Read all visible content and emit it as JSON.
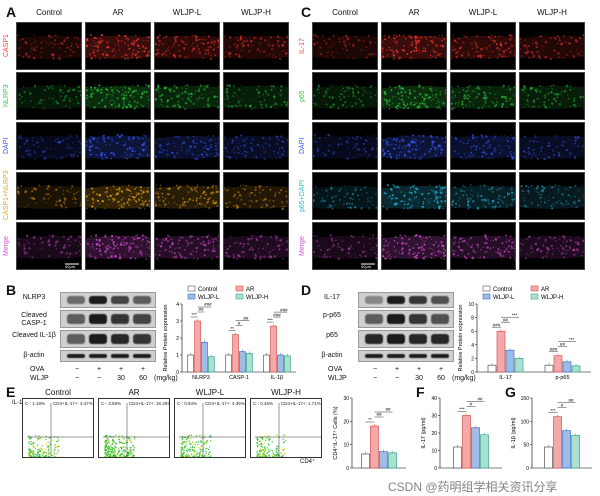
{
  "panels": {
    "A": {
      "label": "A",
      "columns": [
        "Control",
        "AR",
        "WLJP-L",
        "WLJP-H"
      ],
      "rows": [
        "CASP1",
        "NLRP3",
        "DAPI",
        "CASP1+NLRP3",
        "Merge"
      ],
      "scale": "40μm",
      "row_colors": [
        "#ff3b30",
        "#2ecc40",
        "#3b5bff",
        "#e8a21a",
        "#d94fd9"
      ]
    },
    "C": {
      "label": "C",
      "columns": [
        "Control",
        "AR",
        "WLJP-L",
        "WLJP-H"
      ],
      "rows": [
        "IL-17",
        "p65",
        "DAPI",
        "p65+DAPI",
        "Merge"
      ],
      "scale": "40μm",
      "row_colors": [
        "#ff3b30",
        "#2ecc40",
        "#3b5bff",
        "#27b7d9",
        "#d94fd9"
      ]
    },
    "B": {
      "label": "B",
      "blots": [
        "NLRP3",
        "Cleaved CASP-1",
        "Cleaved IL-1β",
        "β-actin"
      ],
      "conditions": {
        "rows": [
          {
            "name": "OVA",
            "values": [
              "−",
              "+",
              "+",
              "+"
            ]
          },
          {
            "name": "WLJP",
            "values": [
              "−",
              "−",
              "30",
              "60"
            ]
          }
        ],
        "unit": "(mg/kg)"
      }
    },
    "D": {
      "label": "D",
      "blots": [
        "IL-17",
        "p-p65",
        "p65",
        "β-actin"
      ],
      "conditions": {
        "rows": [
          {
            "name": "OVA",
            "values": [
              "−",
              "+",
              "+",
              "+"
            ]
          },
          {
            "name": "WLJP",
            "values": [
              "−",
              "−",
              "30",
              "60"
            ]
          }
        ],
        "unit": "(mg/kg)"
      }
    },
    "E": {
      "label": "E",
      "yaxis": "IL-17⁺",
      "xaxis": "CD4⁺",
      "plots": [
        {
          "title": "Control",
          "gate_left": "C-: 1.18%",
          "gate_right": "CD4+IL-17+: 3.47%"
        },
        {
          "title": "AR",
          "gate_left": "C-: 3.59%",
          "gate_right": "CD4+IL-17+: 16.25%"
        },
        {
          "title": "WLJP-L",
          "gate_left": "C-: 0.94%",
          "gate_right": "CD4+IL-17+: 4.35%"
        },
        {
          "title": "WLJP-H",
          "gate_left": "C-: 0.45%",
          "gate_right": "CD4+IL-17+: 1.71%"
        }
      ]
    },
    "F": {
      "label": "F"
    },
    "G": {
      "label": "G"
    }
  },
  "legend": {
    "groups": [
      "Control",
      "AR",
      "WLJP-L",
      "WLJP-H"
    ],
    "colors": [
      "#ffffff",
      "#f3a9a9",
      "#9fbce8",
      "#a9e0d2"
    ],
    "edges": [
      "#555555",
      "#d9534f",
      "#3f6fc1",
      "#3aa38a"
    ]
  },
  "chart_data": [
    {
      "type": "bar",
      "panel": "B",
      "ylabel": "Relative Protein expression",
      "categories": [
        "NLRP3",
        "CASP-1",
        "IL-1β"
      ],
      "ylim": [
        0,
        4
      ],
      "yticks": [
        0,
        1,
        2,
        3,
        4
      ],
      "series": [
        {
          "name": "Control",
          "values": [
            1.0,
            1.0,
            1.0
          ]
        },
        {
          "name": "AR",
          "values": [
            3.0,
            2.2,
            2.7
          ]
        },
        {
          "name": "WLJP-L",
          "values": [
            1.75,
            1.2,
            1.0
          ]
        },
        {
          "name": "WLJP-H",
          "values": [
            0.9,
            1.1,
            0.95
          ]
        }
      ],
      "annotations": [
        "***",
        "##",
        "###",
        "**",
        "#",
        "##",
        "***",
        "###",
        "###"
      ]
    },
    {
      "type": "bar",
      "panel": "D",
      "ylabel": "Relative Protein expression",
      "categories": [
        "IL-17",
        "p-p65"
      ],
      "ylim": [
        0,
        10
      ],
      "yticks": [
        0,
        2,
        4,
        6,
        8,
        10
      ],
      "series": [
        {
          "name": "Control",
          "values": [
            1.0,
            1.0
          ]
        },
        {
          "name": "AR",
          "values": [
            6.0,
            2.4
          ]
        },
        {
          "name": "WLJP-L",
          "values": [
            3.2,
            1.5
          ]
        },
        {
          "name": "WLJP-H",
          "values": [
            2.0,
            0.9
          ]
        }
      ],
      "annotations": [
        "###",
        "##",
        "***",
        "###",
        "##",
        "***"
      ]
    },
    {
      "type": "bar",
      "panel": "E",
      "ylabel": "CD4⁺IL-17⁺ Cells (%)",
      "categories": [
        ""
      ],
      "ylim": [
        0,
        30
      ],
      "yticks": [
        0,
        10,
        20,
        30
      ],
      "series": [
        {
          "name": "Control",
          "values": [
            6
          ]
        },
        {
          "name": "AR",
          "values": [
            18
          ]
        },
        {
          "name": "WLJP-L",
          "values": [
            7
          ]
        },
        {
          "name": "WLJP-H",
          "values": [
            6.5
          ]
        }
      ],
      "annotations": [
        "**",
        "##",
        "##"
      ]
    },
    {
      "type": "bar",
      "panel": "F",
      "ylabel": "IL-17 (pg/ml)",
      "categories": [
        ""
      ],
      "ylim": [
        0,
        40
      ],
      "yticks": [
        0,
        10,
        20,
        30,
        40
      ],
      "series": [
        {
          "name": "Control",
          "values": [
            12
          ]
        },
        {
          "name": "AR",
          "values": [
            30
          ]
        },
        {
          "name": "WLJP-L",
          "values": [
            23
          ]
        },
        {
          "name": "WLJP-H",
          "values": [
            19
          ]
        }
      ],
      "annotations": [
        "***",
        "#",
        "##"
      ]
    },
    {
      "type": "bar",
      "panel": "G",
      "ylabel": "IL-1β (pg/ml)",
      "categories": [
        ""
      ],
      "ylim": [
        0,
        150
      ],
      "yticks": [
        0,
        50,
        100,
        150
      ],
      "series": [
        {
          "name": "Control",
          "values": [
            45
          ]
        },
        {
          "name": "AR",
          "values": [
            110
          ]
        },
        {
          "name": "WLJP-L",
          "values": [
            80
          ]
        },
        {
          "name": "WLJP-H",
          "values": [
            70
          ]
        }
      ],
      "annotations": [
        "***",
        "#",
        "##"
      ]
    }
  ],
  "watermark": "CSDN @药明组学相关资讯分享"
}
